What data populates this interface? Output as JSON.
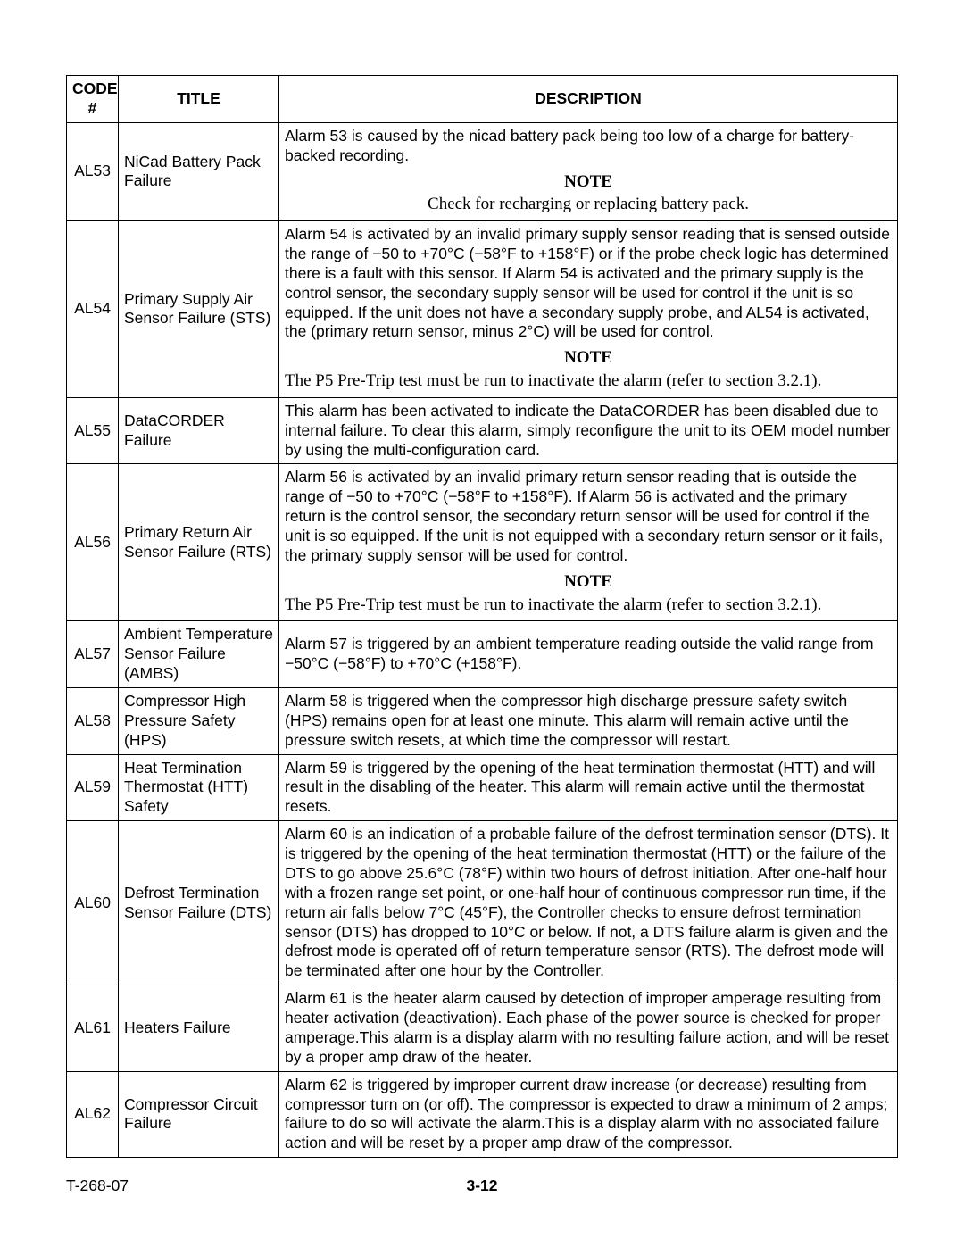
{
  "header": {
    "code": "CODE #",
    "title": "TITLE",
    "desc": "DESCRIPTION"
  },
  "note_label": "NOTE",
  "rows": {
    "al53": {
      "code": "AL53",
      "title": "NiCad Battery Pack Failure",
      "desc": "Alarm 53 is caused by  the nicad battery pack being too low of a charge for battery-backed recording.",
      "note": "Check for recharging or replacing battery pack."
    },
    "al54": {
      "code": "AL54",
      "title": "Primary Supply Air Sensor Failure (STS)",
      "desc": "Alarm 54 is activated by an invalid primary supply sensor reading that is sensed outside the range of −50 to +70°C (−58°F to +158°F) or if the probe check logic has determined there is a fault with this sensor. If Alarm 54 is activated and the primary supply is the control sensor, the secondary supply sensor will be used for control if the unit is so equipped. If the unit does not have a secondary supply probe, and AL54 is activated, the (primary return sensor, minus 2°C) will be used for control.",
      "note": "The P5 Pre-Trip test must be run to inactivate the alarm (refer to section 3.2.1)."
    },
    "al55": {
      "code": "AL55",
      "title": "DataCORDER Failure",
      "desc": "This alarm has been activated to indicate the DataCORDER has been disabled due to internal failure. To clear this alarm, simply reconfigure the unit to its OEM model number by using the multi-configuration card."
    },
    "al56": {
      "code": "AL56",
      "title": "Primary Return Air Sensor Failure (RTS)",
      "desc": "Alarm 56 is activated by an invalid primary return sensor reading that is outside the range of −50 to +70°C (−58°F to +158°F). If Alarm 56 is activated and the primary return is the control sensor, the secondary return sensor will be used for control if the unit is so equipped. If the unit is not equipped with a secondary return sensor or it fails, the primary supply sensor will be used for control.",
      "note": "The P5 Pre-Trip test must be run to inactivate the alarm (refer to section 3.2.1)."
    },
    "al57": {
      "code": "AL57",
      "title": "Ambient Temperature Sensor Failure (AMBS)",
      "desc": "Alarm 57 is triggered by an ambient temperature reading outside the valid range from −50°C (−58°F) to +70°C (+158°F)."
    },
    "al58": {
      "code": "AL58",
      "title": "Compressor High Pressure Safety (HPS)",
      "desc": "Alarm 58 is triggered when the compressor high discharge pressure safety switch (HPS) remains open for at least one minute. This alarm will remain active until the pressure switch resets, at which time the compressor will restart."
    },
    "al59": {
      "code": "AL59",
      "title": "Heat Termination Thermostat (HTT) Safety",
      "desc": "Alarm 59 is triggered by the opening of the heat termination thermostat (HTT) and will result in the disabling of the heater. This alarm will remain active until the thermostat resets."
    },
    "al60": {
      "code": "AL60",
      "title": "Defrost Termination Sensor Failure (DTS)",
      "desc": "Alarm 60 is an indication of a probable failure of the defrost termination sensor (DTS). It is triggered by the opening of the heat termination thermostat (HTT) or the failure of the DTS to go above 25.6°C (78°F) within two hours of defrost initiation. After one-half hour with a frozen range set point, or one-half hour of continuous compressor run time, if the return air falls below 7°C (45°F), the Controller checks to ensure defrost termination sensor (DTS) has dropped to 10°C or below. If not, a DTS failure alarm is given and the defrost mode is operated off of return temperature sensor (RTS). The defrost mode will be terminated after one hour by the Controller."
    },
    "al61": {
      "code": "AL61",
      "title": "Heaters Failure",
      "desc": "Alarm 61 is the heater alarm caused by detection of improper amperage resulting from heater activation (deactivation). Each phase of the power source is checked for proper amperage.This alarm is a display alarm with no resulting failure action, and will be reset by a proper amp draw of the heater."
    },
    "al62": {
      "code": "AL62",
      "title": "Compressor Circuit Failure",
      "desc": "Alarm 62 is triggered by improper current draw increase (or decrease) resulting from compressor turn on (or off). The compressor is expected to draw a minimum of 2 amps; failure to do so will activate the alarm.This is a display alarm with no associated failure action and will be reset by a proper amp draw of the compressor."
    }
  },
  "footer": {
    "doc": "T-268-07",
    "page": "3-12"
  }
}
